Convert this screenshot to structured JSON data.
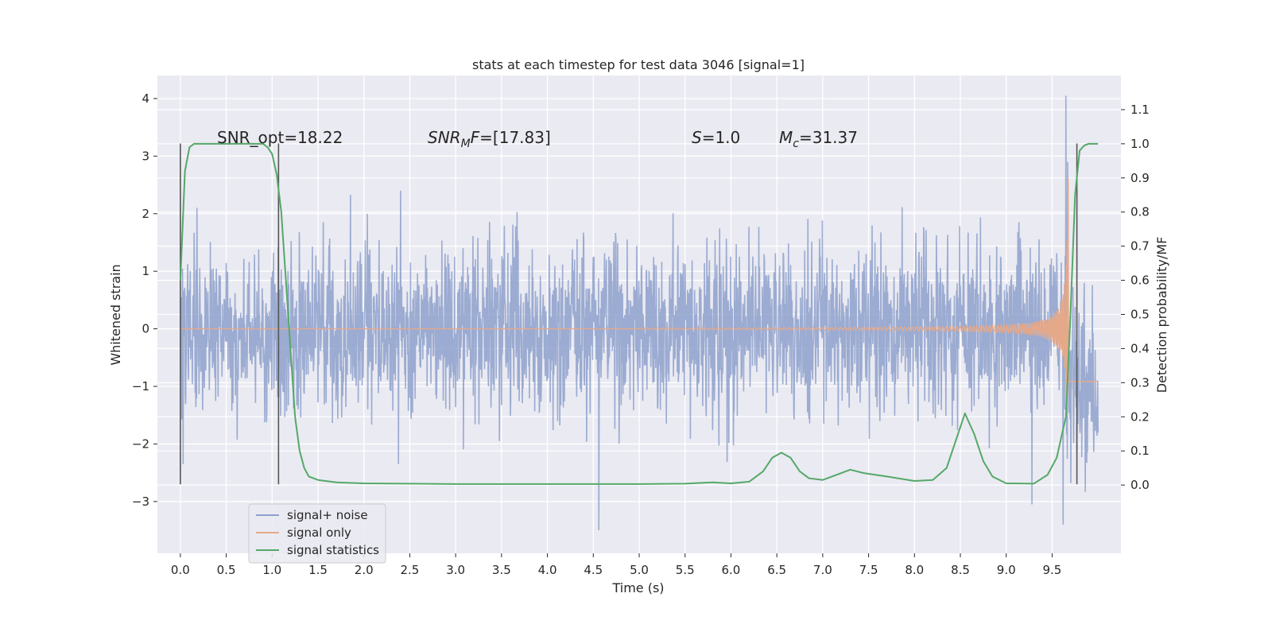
{
  "chart_data": {
    "type": "line",
    "title": "stats at each timestep for test data 3046 [signal=1]",
    "xlabel": "Time (s)",
    "ylabel": "Whitened strain",
    "y2label": "Detection probability/MF",
    "xlim": [
      -0.25,
      10.25
    ],
    "ylim": [
      -3.9,
      4.4
    ],
    "y2lim": [
      -0.2,
      1.2
    ],
    "x_ticks": [
      0.0,
      0.5,
      1.0,
      1.5,
      2.0,
      2.5,
      3.0,
      3.5,
      4.0,
      4.5,
      5.0,
      5.5,
      6.0,
      6.5,
      7.0,
      7.5,
      8.0,
      8.5,
      9.0,
      9.5
    ],
    "y_ticks": [
      -3,
      -2,
      -1,
      0,
      1,
      2,
      3,
      4
    ],
    "y2_ticks": [
      0.0,
      0.1,
      0.2,
      0.3,
      0.4,
      0.5,
      0.6,
      0.7,
      0.8,
      0.9,
      1.0,
      1.1
    ],
    "grid": true,
    "legend": "lower-left",
    "annotations": {
      "snr_opt": "SNR_opt=18.22",
      "snr_mf_sym": "SNR",
      "snr_mf_sub": "M",
      "snr_mf_tail": "F",
      "snr_mf_val": "=[17.83]",
      "s_sym": "S",
      "s_val": "=1.0",
      "mc_sym": "M",
      "mc_sub": "c",
      "mc_val": "=31.37"
    },
    "vertical_markers": [
      {
        "x": 0.0,
        "y_range": [
          -2.7,
          3.22
        ]
      },
      {
        "x": 1.07,
        "y_range": [
          -2.7,
          3.22
        ]
      },
      {
        "x": 9.77,
        "y_range": [
          -2.7,
          3.22
        ]
      }
    ],
    "series": [
      {
        "name": "signal+ noise",
        "color": "#8da0cb",
        "axis": "left",
        "x_range": [
          0.0,
          10.0
        ],
        "typical_amplitude": 1.3,
        "extreme_points": [
          {
            "x": 4.56,
            "y": -3.5
          },
          {
            "x": 9.28,
            "y": -3.05
          },
          {
            "x": 9.62,
            "y": -3.4
          },
          {
            "x": 9.65,
            "y": 4.05
          },
          {
            "x": 2.4,
            "y": 2.4
          },
          {
            "x": 0.03,
            "y": -2.35
          }
        ]
      },
      {
        "name": "signal only",
        "color": "#e5a98a",
        "axis": "left",
        "x_range": [
          0.0,
          10.0
        ],
        "chirp": {
          "start_x": 5.0,
          "merger_x": 9.65,
          "peak_amplitude": 3.0
        }
      },
      {
        "name": "signal statistics",
        "color": "#55a868",
        "axis": "right",
        "x": [
          0.0,
          0.05,
          0.1,
          0.15,
          0.2,
          0.3,
          0.5,
          0.7,
          0.9,
          0.95,
          1.0,
          1.05,
          1.1,
          1.15,
          1.2,
          1.25,
          1.3,
          1.35,
          1.4,
          1.5,
          1.7,
          2.0,
          2.5,
          3.0,
          3.5,
          4.0,
          4.5,
          5.0,
          5.5,
          5.8,
          6.0,
          6.2,
          6.35,
          6.45,
          6.55,
          6.65,
          6.75,
          6.85,
          7.0,
          7.15,
          7.3,
          7.45,
          7.7,
          8.0,
          8.2,
          8.35,
          8.45,
          8.55,
          8.65,
          8.75,
          8.85,
          9.0,
          9.3,
          9.45,
          9.55,
          9.65,
          9.7,
          9.75,
          9.8,
          9.85,
          9.9,
          10.0
        ],
        "y": [
          0.6,
          0.92,
          0.99,
          1.0,
          1.0,
          1.0,
          1.0,
          1.0,
          1.0,
          0.99,
          0.97,
          0.91,
          0.8,
          0.6,
          0.4,
          0.2,
          0.1,
          0.05,
          0.025,
          0.015,
          0.008,
          0.005,
          0.004,
          0.003,
          0.003,
          0.003,
          0.003,
          0.003,
          0.004,
          0.008,
          0.005,
          0.01,
          0.04,
          0.08,
          0.095,
          0.08,
          0.04,
          0.02,
          0.015,
          0.03,
          0.045,
          0.035,
          0.025,
          0.012,
          0.015,
          0.05,
          0.13,
          0.21,
          0.15,
          0.07,
          0.025,
          0.005,
          0.004,
          0.03,
          0.08,
          0.2,
          0.5,
          0.85,
          0.98,
          0.995,
          1.0,
          1.0
        ]
      }
    ]
  }
}
